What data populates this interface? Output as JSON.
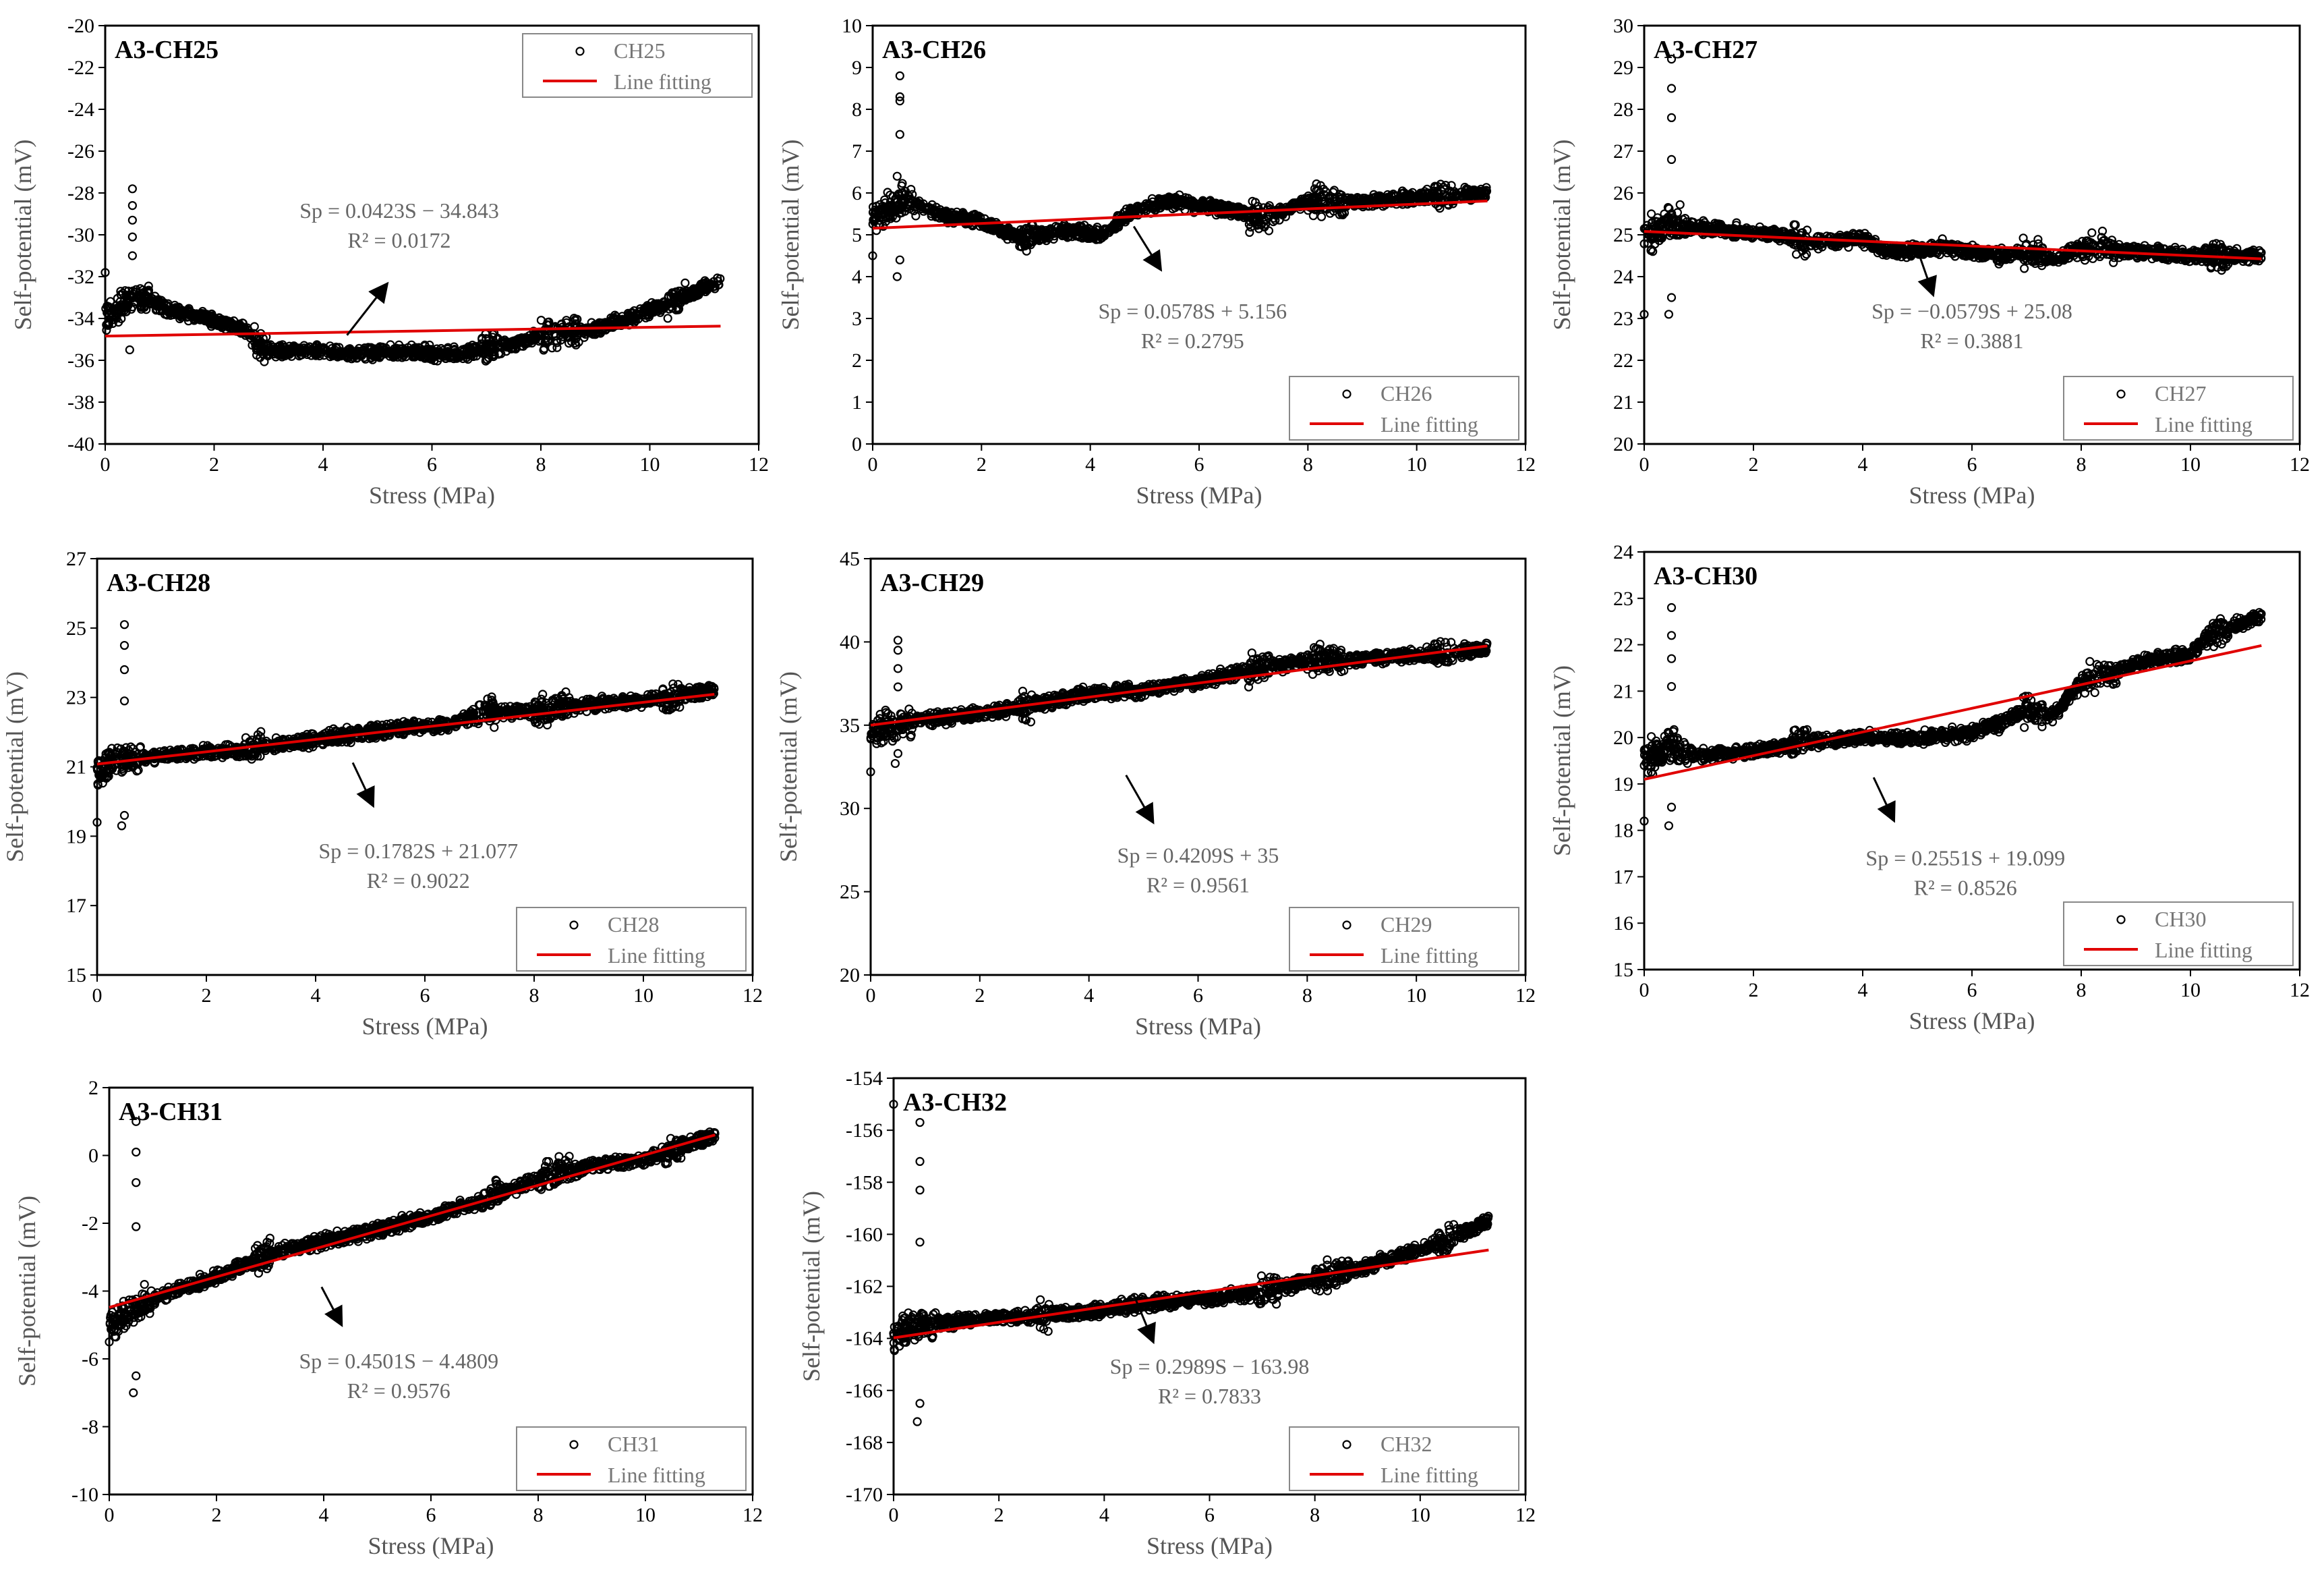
{
  "figure": {
    "xlabel": "Stress (MPa)",
    "ylabel": "Self-potential  (mV)",
    "legend_fit_label": "Line fitting"
  },
  "chart_data": [
    {
      "type": "scatter",
      "title": "A3-CH25",
      "xlabel": "Stress (MPa)",
      "ylabel": "Self-potential  (mV)",
      "xlim": [
        0,
        12
      ],
      "ylim": [
        -40,
        -20
      ],
      "xticks": [
        0,
        2,
        4,
        6,
        8,
        10,
        12
      ],
      "yticks": [
        -40,
        -38,
        -36,
        -34,
        -32,
        -30,
        -28,
        -26,
        -24,
        -22,
        -20
      ],
      "legend": {
        "series": "CH25",
        "fit": "Line fitting",
        "position": "top-right"
      },
      "fit": {
        "slope": 0.0423,
        "intercept": -34.843
      },
      "equation": "Sp = 0.0423S − 34.843",
      "r2": "R² = 0.0172",
      "trend_points": [
        [
          0,
          -34.0
        ],
        [
          0.3,
          -33.3
        ],
        [
          0.7,
          -33.0
        ],
        [
          1.2,
          -33.6
        ],
        [
          2.0,
          -34.1
        ],
        [
          2.6,
          -34.6
        ],
        [
          2.9,
          -35.6
        ],
        [
          3.5,
          -35.5
        ],
        [
          4.5,
          -35.7
        ],
        [
          5.5,
          -35.6
        ],
        [
          6.5,
          -35.7
        ],
        [
          7.0,
          -35.5
        ],
        [
          7.5,
          -35.2
        ],
        [
          8.0,
          -34.8
        ],
        [
          9.0,
          -34.5
        ],
        [
          10.0,
          -33.6
        ],
        [
          10.8,
          -32.8
        ],
        [
          11.3,
          -32.2
        ]
      ],
      "outliers": [
        [
          0.5,
          -27.8
        ],
        [
          0.5,
          -28.6
        ],
        [
          0.5,
          -29.3
        ],
        [
          0.5,
          -30.1
        ],
        [
          0.5,
          -31.0
        ],
        [
          0.45,
          -35.5
        ],
        [
          0.0,
          -31.8
        ]
      ]
    },
    {
      "type": "scatter",
      "title": "A3-CH26",
      "xlabel": "Stress (MPa)",
      "ylabel": "Self-potential  (mV)",
      "xlim": [
        0,
        12
      ],
      "ylim": [
        0,
        10
      ],
      "xticks": [
        0,
        2,
        4,
        6,
        8,
        10,
        12
      ],
      "yticks": [
        0,
        1,
        2,
        3,
        4,
        5,
        6,
        7,
        8,
        9,
        10
      ],
      "legend": {
        "series": "CH26",
        "fit": "Line fitting",
        "position": "bottom-right"
      },
      "fit": {
        "slope": 0.0578,
        "intercept": 5.156
      },
      "equation": "Sp = 0.0578S + 5.156",
      "r2": "R² = 0.2795",
      "trend_points": [
        [
          0,
          5.4
        ],
        [
          0.3,
          5.6
        ],
        [
          0.6,
          5.8
        ],
        [
          1.2,
          5.5
        ],
        [
          2.0,
          5.3
        ],
        [
          2.8,
          4.9
        ],
        [
          3.5,
          5.1
        ],
        [
          4.2,
          5.0
        ],
        [
          4.8,
          5.6
        ],
        [
          5.5,
          5.8
        ],
        [
          6.5,
          5.6
        ],
        [
          7.2,
          5.4
        ],
        [
          8.0,
          5.8
        ],
        [
          9.0,
          5.8
        ],
        [
          10.0,
          5.9
        ],
        [
          11.3,
          6.0
        ]
      ],
      "outliers": [
        [
          0.5,
          8.8
        ],
        [
          0.5,
          8.3
        ],
        [
          0.5,
          8.2
        ],
        [
          0.5,
          7.4
        ],
        [
          0.45,
          4.0
        ],
        [
          0.5,
          4.4
        ],
        [
          0.45,
          6.4
        ],
        [
          0.0,
          4.5
        ]
      ]
    },
    {
      "type": "scatter",
      "title": "A3-CH27",
      "xlabel": "Stress (MPa)",
      "ylabel": "Self-potential  (mV)",
      "xlim": [
        0,
        12
      ],
      "ylim": [
        20,
        30
      ],
      "xticks": [
        0,
        2,
        4,
        6,
        8,
        10,
        12
      ],
      "yticks": [
        20,
        21,
        22,
        23,
        24,
        25,
        26,
        27,
        28,
        29,
        30
      ],
      "legend": {
        "series": "CH27",
        "fit": "Line fitting",
        "position": "bottom-right"
      },
      "fit": {
        "slope": -0.0579,
        "intercept": 25.08
      },
      "equation": "Sp = −0.0579S + 25.08",
      "r2": "R² = 0.3881",
      "trend_points": [
        [
          0,
          24.9
        ],
        [
          0.4,
          25.3
        ],
        [
          0.8,
          25.2
        ],
        [
          1.5,
          25.1
        ],
        [
          2.5,
          25.0
        ],
        [
          3.0,
          24.8
        ],
        [
          4.0,
          24.9
        ],
        [
          4.5,
          24.6
        ],
        [
          5.5,
          24.7
        ],
        [
          6.5,
          24.5
        ],
        [
          7.0,
          24.6
        ],
        [
          7.5,
          24.4
        ],
        [
          8.0,
          24.7
        ],
        [
          9.0,
          24.6
        ],
        [
          10.0,
          24.5
        ],
        [
          11.3,
          24.5
        ]
      ],
      "outliers": [
        [
          0.5,
          29.2
        ],
        [
          0.5,
          28.5
        ],
        [
          0.5,
          27.8
        ],
        [
          0.5,
          26.8
        ],
        [
          0.45,
          23.1
        ],
        [
          0.5,
          23.5
        ],
        [
          0.0,
          23.1
        ]
      ]
    },
    {
      "type": "scatter",
      "title": "A3-CH28",
      "xlabel": "Stress (MPa)",
      "ylabel": "Self-potential  (mV)",
      "xlim": [
        0,
        12
      ],
      "ylim": [
        15,
        27
      ],
      "xticks": [
        0,
        2,
        4,
        6,
        8,
        10,
        12
      ],
      "yticks": [
        15,
        17,
        19,
        21,
        23,
        25,
        27
      ],
      "legend": {
        "series": "CH28",
        "fit": "Line fitting",
        "position": "bottom-right"
      },
      "fit": {
        "slope": 0.1782,
        "intercept": 21.077
      },
      "equation": "Sp = 0.1782S + 21.077",
      "r2": "R² = 0.9022",
      "trend_points": [
        [
          0,
          20.9
        ],
        [
          0.4,
          21.2
        ],
        [
          1.0,
          21.3
        ],
        [
          2.0,
          21.4
        ],
        [
          2.8,
          21.5
        ],
        [
          3.5,
          21.7
        ],
        [
          4.5,
          21.9
        ],
        [
          5.5,
          22.1
        ],
        [
          6.5,
          22.2
        ],
        [
          7.0,
          22.6
        ],
        [
          8.0,
          22.6
        ],
        [
          9.0,
          22.8
        ],
        [
          10.0,
          22.9
        ],
        [
          11.3,
          23.2
        ]
      ],
      "outliers": [
        [
          0.5,
          25.1
        ],
        [
          0.5,
          24.5
        ],
        [
          0.5,
          23.8
        ],
        [
          0.5,
          22.9
        ],
        [
          0.45,
          19.3
        ],
        [
          0.5,
          19.6
        ],
        [
          0.0,
          19.4
        ]
      ]
    },
    {
      "type": "scatter",
      "title": "A3-CH29",
      "xlabel": "Stress (MPa)",
      "ylabel": "Self-potential  (mV)",
      "xlim": [
        0,
        12
      ],
      "ylim": [
        20,
        45
      ],
      "xticks": [
        0,
        2,
        4,
        6,
        8,
        10,
        12
      ],
      "yticks": [
        20,
        25,
        30,
        35,
        40,
        45
      ],
      "legend": {
        "series": "CH29",
        "fit": "Line fitting",
        "position": "bottom-right"
      },
      "fit": {
        "slope": 0.4209,
        "intercept": 35
      },
      "equation": "Sp = 0.4209S + 35",
      "r2": "R² = 0.9561",
      "trend_points": [
        [
          0,
          34.6
        ],
        [
          0.5,
          35.0
        ],
        [
          1.0,
          35.3
        ],
        [
          2.0,
          35.7
        ],
        [
          3.0,
          36.2
        ],
        [
          4.0,
          36.9
        ],
        [
          5.0,
          37.1
        ],
        [
          6.0,
          37.6
        ],
        [
          7.0,
          38.4
        ],
        [
          8.0,
          38.9
        ],
        [
          9.0,
          39.0
        ],
        [
          10.0,
          39.2
        ],
        [
          11.3,
          39.6
        ]
      ],
      "outliers": [
        [
          0.5,
          40.1
        ],
        [
          0.5,
          39.5
        ],
        [
          0.5,
          38.4
        ],
        [
          0.5,
          37.3
        ],
        [
          0.45,
          32.7
        ],
        [
          0.5,
          33.3
        ],
        [
          0.0,
          32.2
        ]
      ]
    },
    {
      "type": "scatter",
      "title": "A3-CH30",
      "xlabel": "Stress (MPa)",
      "ylabel": "Self-potential  (mV)",
      "xlim": [
        0,
        12
      ],
      "ylim": [
        15,
        24
      ],
      "xticks": [
        0,
        2,
        4,
        6,
        8,
        10,
        12
      ],
      "yticks": [
        15,
        16,
        17,
        18,
        19,
        20,
        21,
        22,
        23,
        24
      ],
      "legend": {
        "series": "CH30",
        "fit": "Line fitting",
        "position": "bottom-right"
      },
      "fit": {
        "slope": 0.2551,
        "intercept": 19.099
      },
      "equation": "Sp = 0.2551S + 19.099",
      "r2": "R² = 0.8526",
      "trend_points": [
        [
          0,
          19.5
        ],
        [
          0.4,
          19.8
        ],
        [
          1.0,
          19.6
        ],
        [
          2.0,
          19.7
        ],
        [
          3.0,
          19.9
        ],
        [
          4.0,
          20.0
        ],
        [
          5.0,
          20.0
        ],
        [
          6.0,
          20.1
        ],
        [
          6.5,
          20.3
        ],
        [
          7.0,
          20.6
        ],
        [
          7.5,
          20.5
        ],
        [
          8.0,
          21.2
        ],
        [
          9.0,
          21.6
        ],
        [
          10.0,
          21.8
        ],
        [
          10.5,
          22.3
        ],
        [
          11.3,
          22.6
        ]
      ],
      "outliers": [
        [
          0.5,
          22.8
        ],
        [
          0.5,
          22.2
        ],
        [
          0.5,
          21.7
        ],
        [
          0.5,
          21.1
        ],
        [
          0.45,
          18.1
        ],
        [
          0.5,
          18.5
        ],
        [
          0.0,
          18.2
        ]
      ]
    },
    {
      "type": "scatter",
      "title": "A3-CH31",
      "xlabel": "Stress (MPa)",
      "ylabel": "Self-potential  (mV)",
      "xlim": [
        0,
        12
      ],
      "ylim": [
        -10,
        2
      ],
      "xticks": [
        0,
        2,
        4,
        6,
        8,
        10,
        12
      ],
      "yticks": [
        -10,
        -8,
        -6,
        -4,
        -2,
        0,
        2
      ],
      "legend": {
        "series": "CH31",
        "fit": "Line fitting",
        "position": "bottom-right"
      },
      "fit": {
        "slope": 0.4501,
        "intercept": -4.4809
      },
      "equation": "Sp = 0.4501S − 4.4809",
      "r2": "R² = 0.9576",
      "trend_points": [
        [
          0,
          -5.0
        ],
        [
          0.4,
          -4.6
        ],
        [
          1.0,
          -4.1
        ],
        [
          2.0,
          -3.6
        ],
        [
          3.0,
          -2.9
        ],
        [
          4.0,
          -2.5
        ],
        [
          5.0,
          -2.2
        ],
        [
          6.0,
          -1.8
        ],
        [
          7.0,
          -1.3
        ],
        [
          8.0,
          -0.7
        ],
        [
          9.0,
          -0.3
        ],
        [
          10.0,
          -0.1
        ],
        [
          11.3,
          0.6
        ]
      ],
      "outliers": [
        [
          0.5,
          1.0
        ],
        [
          0.5,
          0.1
        ],
        [
          0.5,
          -0.8
        ],
        [
          0.5,
          -2.1
        ],
        [
          0.45,
          -7.0
        ],
        [
          0.5,
          -6.5
        ],
        [
          0.0,
          -5.5
        ]
      ]
    },
    {
      "type": "scatter",
      "title": "A3-CH32",
      "xlabel": "Stress (MPa)",
      "ylabel": "Self-potential  (mV)",
      "xlim": [
        0,
        12
      ],
      "ylim": [
        -170,
        -154
      ],
      "xticks": [
        0,
        2,
        4,
        6,
        8,
        10,
        12
      ],
      "yticks": [
        -170,
        -168,
        -166,
        -164,
        -162,
        -160,
        -158,
        -156,
        -154
      ],
      "legend": {
        "series": "CH32",
        "fit": "Line fitting",
        "position": "bottom-right"
      },
      "fit": {
        "slope": 0.2989,
        "intercept": -163.98
      },
      "equation": "Sp = 0.2989S − 163.98",
      "r2": "R² = 0.7833",
      "trend_points": [
        [
          0,
          -163.9
        ],
        [
          0.4,
          -163.5
        ],
        [
          1.0,
          -163.4
        ],
        [
          2.0,
          -163.2
        ],
        [
          3.0,
          -163.1
        ],
        [
          4.0,
          -162.9
        ],
        [
          5.0,
          -162.6
        ],
        [
          6.0,
          -162.5
        ],
        [
          7.0,
          -162.2
        ],
        [
          8.0,
          -161.7
        ],
        [
          9.0,
          -161.2
        ],
        [
          10.0,
          -160.6
        ],
        [
          11.3,
          -159.5
        ]
      ],
      "outliers": [
        [
          0.5,
          -155.7
        ],
        [
          0.5,
          -157.2
        ],
        [
          0.5,
          -158.3
        ],
        [
          0.5,
          -160.3
        ],
        [
          0.45,
          -167.2
        ],
        [
          0.5,
          -166.5
        ],
        [
          0.0,
          -155.0
        ]
      ]
    }
  ]
}
